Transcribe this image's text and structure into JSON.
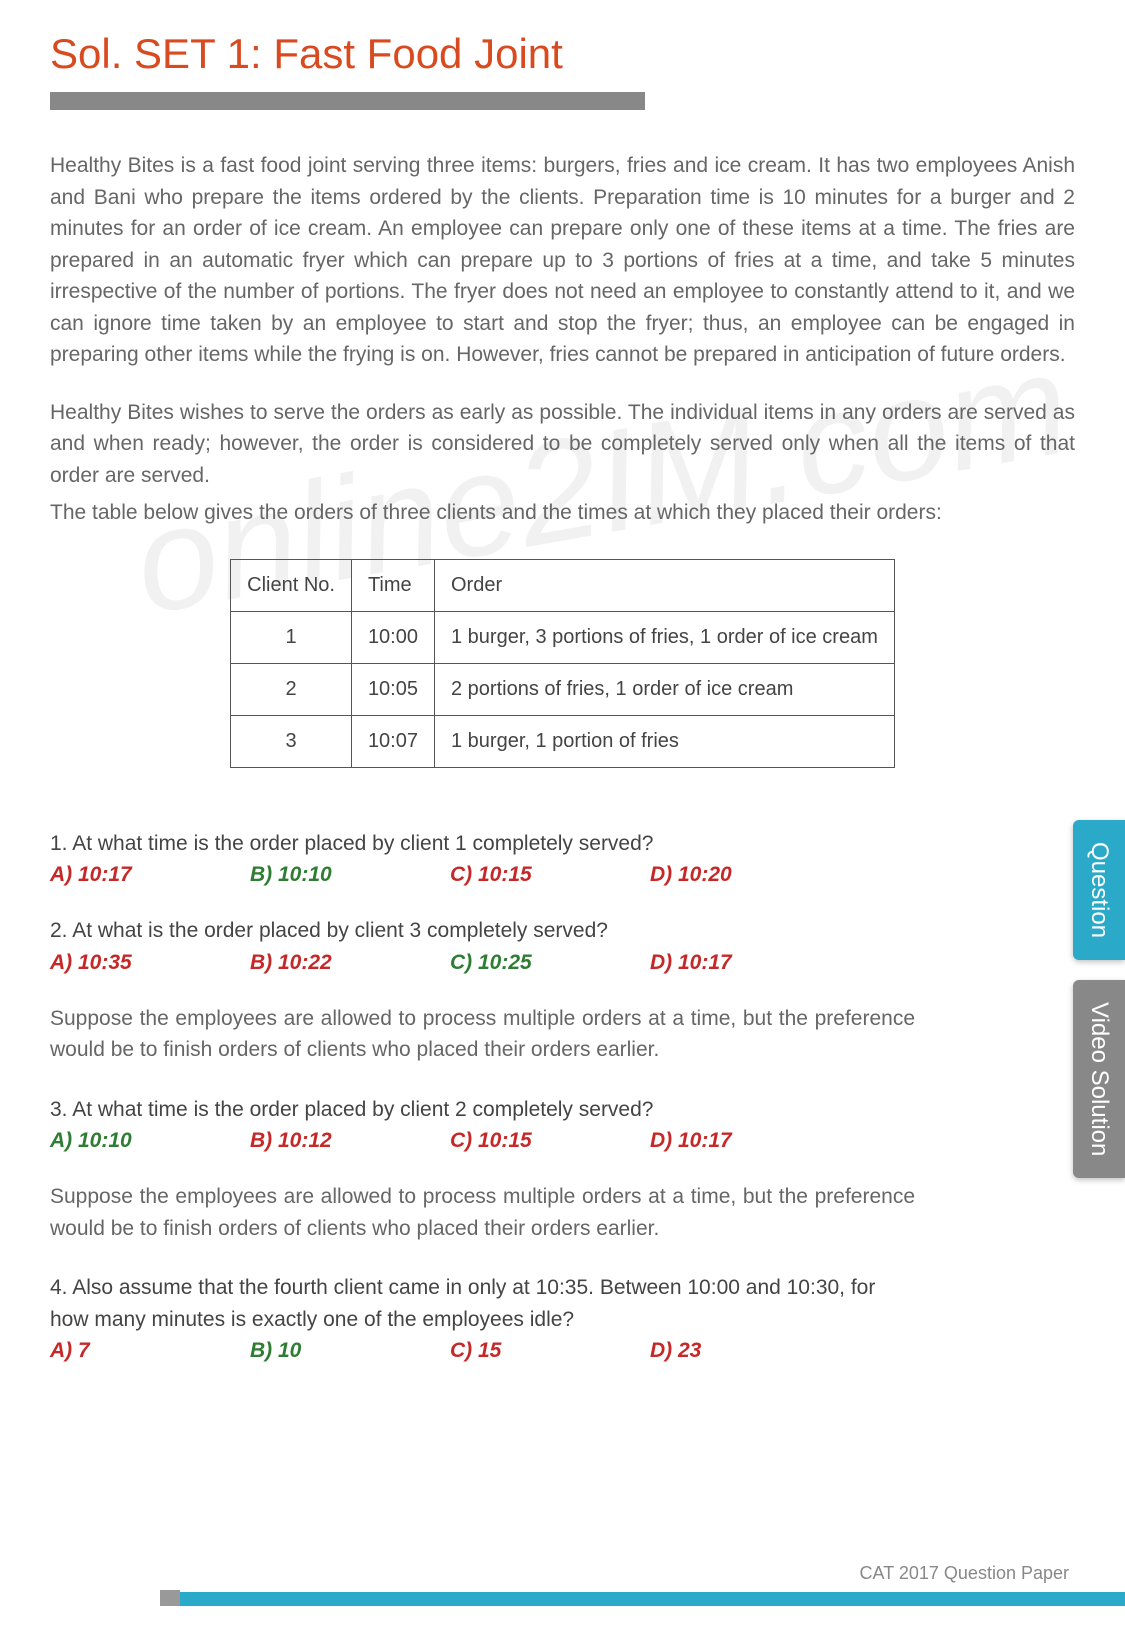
{
  "title": "Sol. SET 1: Fast Food Joint",
  "colors": {
    "title": "#d84b20",
    "greyBar": "#888888",
    "bodyText": "#666666",
    "tableBorder": "#555555",
    "tableText": "#444444",
    "optRed": "#c62828",
    "optGreen": "#2e7d32",
    "tabQuestion": "#2aa9c9",
    "tabVideo": "#888888",
    "footerBar": "#2aa9c9"
  },
  "paragraphs": {
    "p1": "Healthy Bites is a fast food joint serving three items: burgers, fries and ice cream. It has two employees Anish and Bani who prepare the items ordered by the clients. Preparation time is 10 minutes for a burger and 2 minutes for an order of ice cream. An employee can prepare only one of these items at a time. The fries are prepared in an automatic fryer which can prepare up to 3 portions of fries at a time, and take 5 minutes irrespective of the number of portions. The fryer does not need an employee to constantly attend to it, and we can ignore time taken by an employee to start and stop the fryer; thus, an employee can be engaged in preparing other items while the frying is on. However, fries cannot be prepared in anticipation of future orders.",
    "p2": "Healthy Bites wishes to serve the orders as early as possible. The individual items in any orders are served as and when ready; however, the  order is considered to be completely served only when all the items of that order are served.",
    "p3": "The table below gives the orders of three clients and the times at which they placed their orders:"
  },
  "table": {
    "headers": [
      "Client No.",
      "Time",
      "Order"
    ],
    "rows": [
      [
        "1",
        "10:00",
        "1 burger, 3 portions of fries, 1 order of ice cream"
      ],
      [
        "2",
        "10:05",
        "2 portions of fries, 1 order of ice cream"
      ],
      [
        "3",
        "10:07",
        "1 burger, 1 portion of fries"
      ]
    ]
  },
  "questions": [
    {
      "q": "1. At what time is the order placed by client 1 completely served?",
      "opts": [
        {
          "t": "A) 10:17",
          "c": "red"
        },
        {
          "t": "B) 10:10",
          "c": "green"
        },
        {
          "t": "C) 10:15",
          "c": "red"
        },
        {
          "t": "D) 10:20",
          "c": "red"
        }
      ]
    },
    {
      "q": "2. At what is the order placed by client 3 completely served?",
      "opts": [
        {
          "t": "A) 10:35",
          "c": "red"
        },
        {
          "t": "B) 10:22",
          "c": "red"
        },
        {
          "t": "C) 10:25",
          "c": "green"
        },
        {
          "t": "D) 10:17",
          "c": "red"
        }
      ]
    }
  ],
  "note1": "Suppose the employees are allowed to process multiple orders at a time, but the preference would be to finish orders of clients who placed their  orders earlier.",
  "q3": {
    "q": "3. At what time is the order placed by client 2 completely  served?",
    "opts": [
      {
        "t": "A) 10:10",
        "c": "green"
      },
      {
        "t": "B) 10:12",
        "c": "red"
      },
      {
        "t": "C) 10:15",
        "c": "red"
      },
      {
        "t": "D) 10:17",
        "c": "red"
      }
    ]
  },
  "note2": "Suppose the employees are allowed to process multiple orders at a time, but the preference would be to finish orders of clients who placed their  orders earlier.",
  "q4": {
    "q": "4. Also assume that the fourth client came in only at 10:35. Between 10:00 and 10:30, for how many minutes is exactly one of the employees idle?",
    "opts": [
      {
        "t": "A) 7",
        "c": "red"
      },
      {
        "t": "B) 10",
        "c": "green"
      },
      {
        "t": "C) 15",
        "c": "red"
      },
      {
        "t": "D) 23",
        "c": "red"
      }
    ]
  },
  "sideTabs": {
    "question": "Question",
    "video": "Video Solution"
  },
  "footer": "CAT  2017 Question Paper",
  "watermark": "online2IM.com"
}
